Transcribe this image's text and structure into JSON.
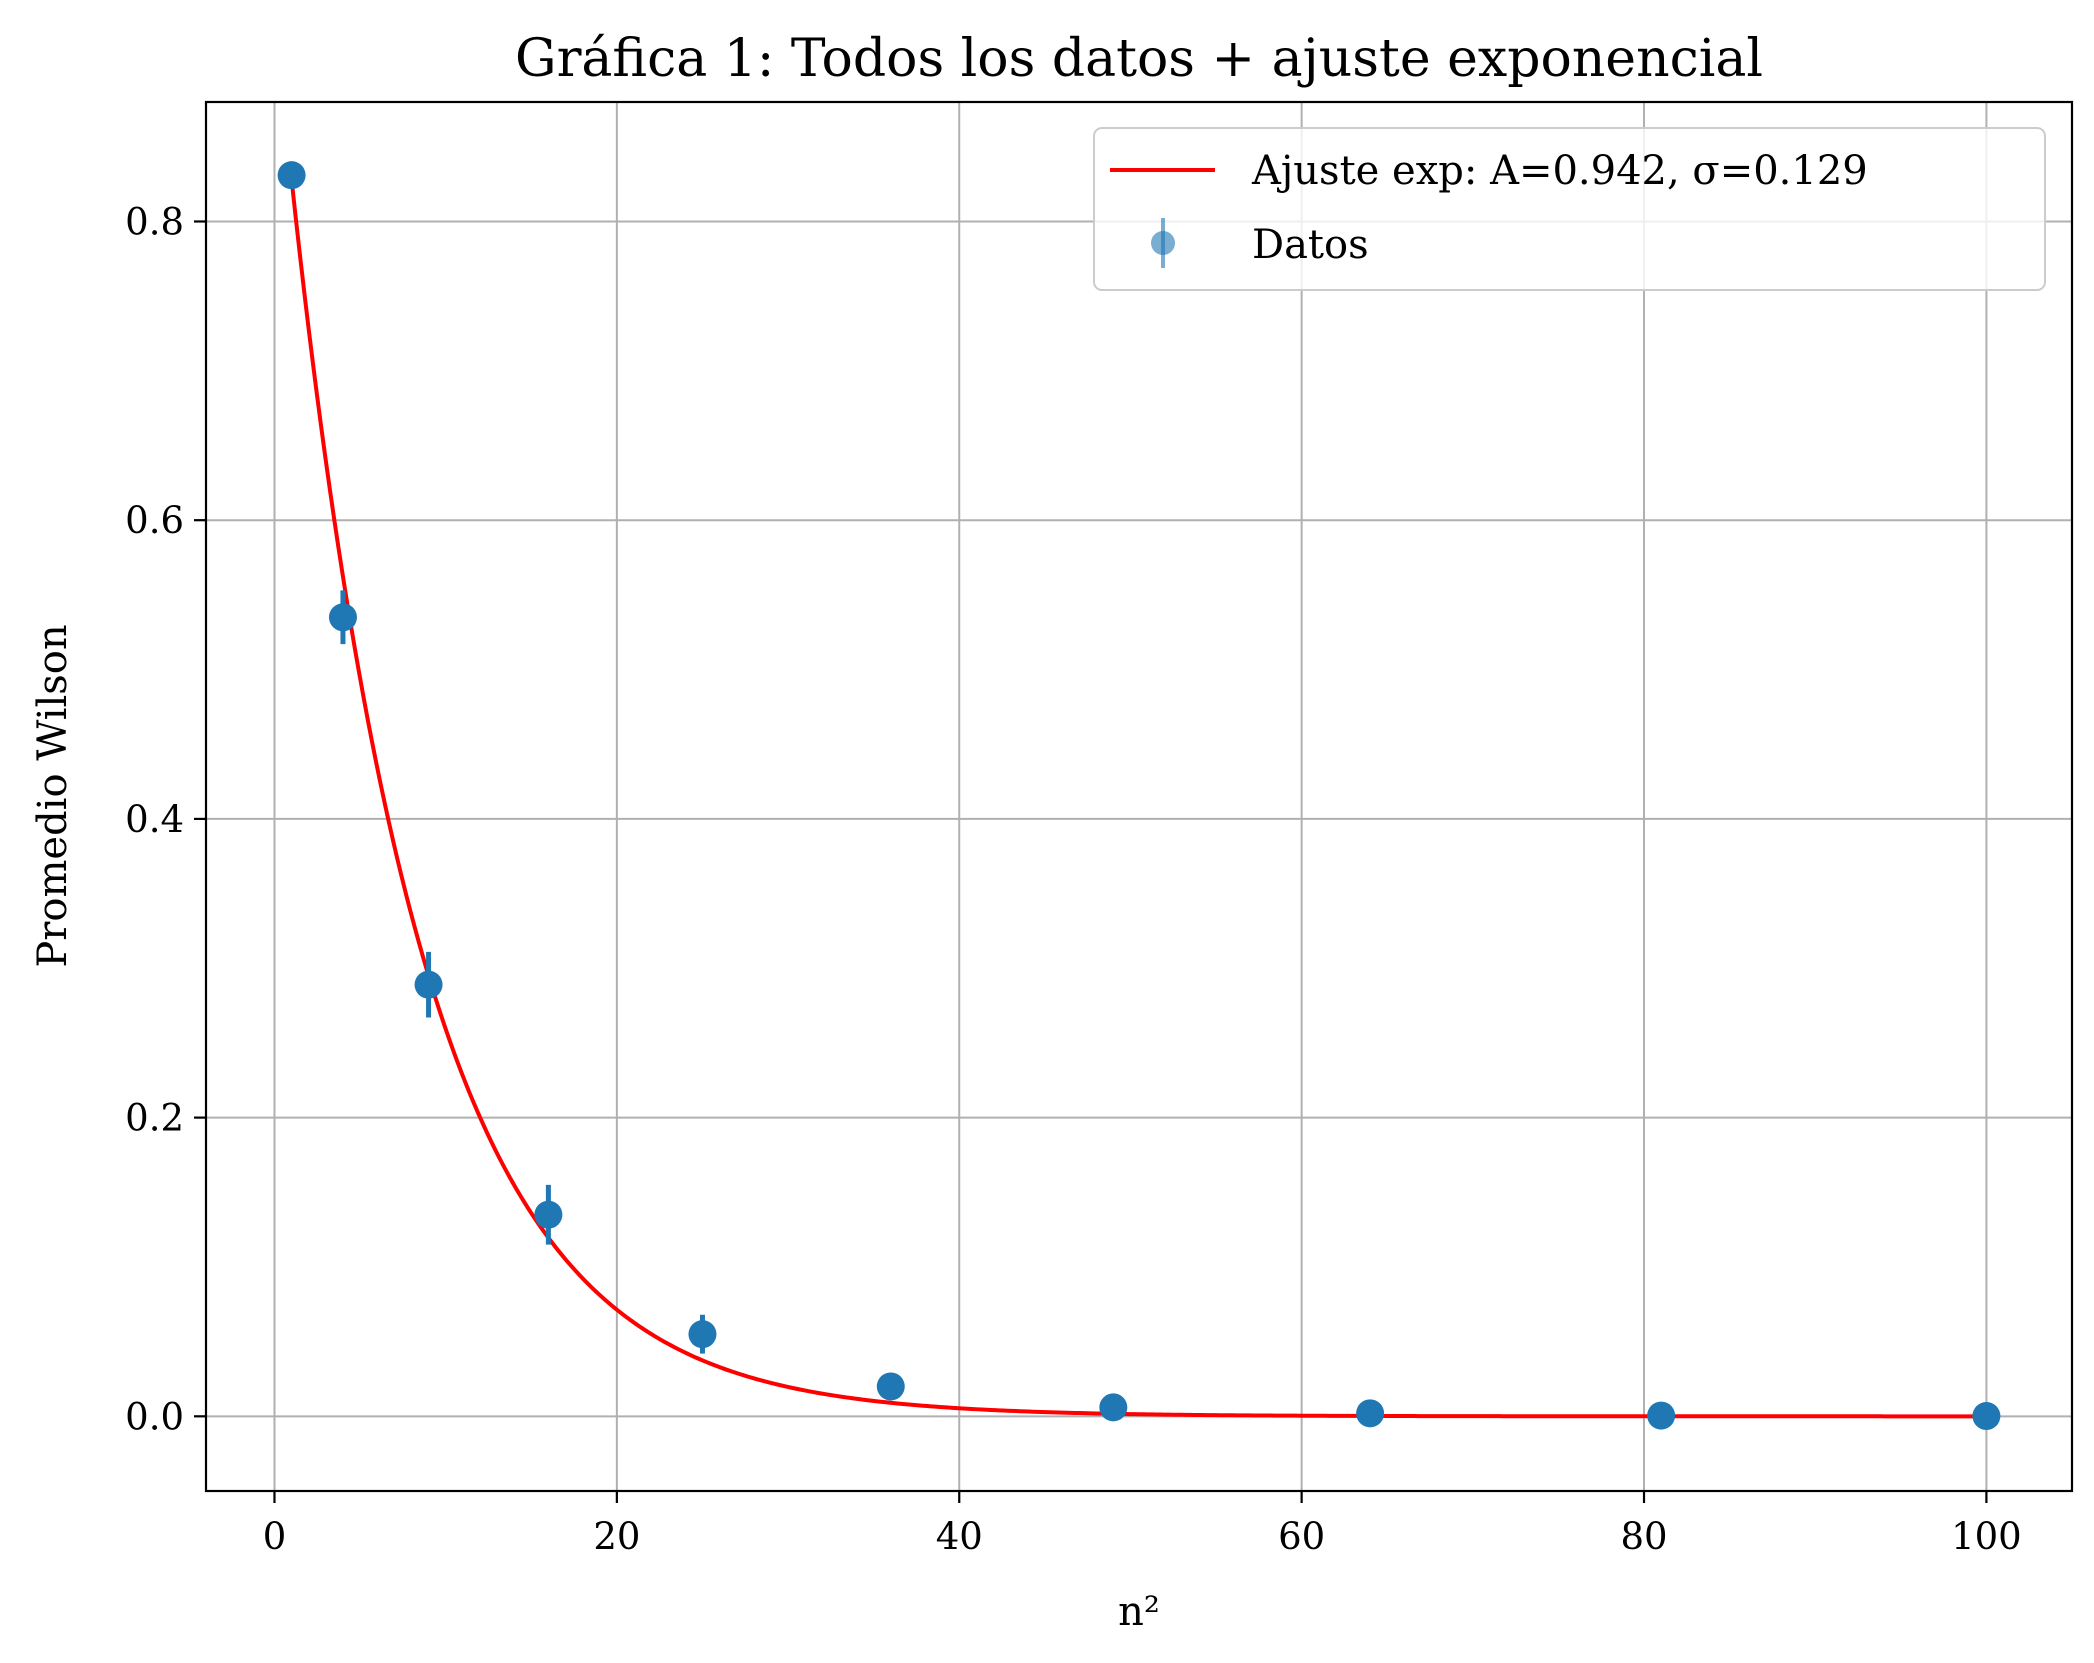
{
  "chart_data": {
    "type": "scatter",
    "title": "Gráfica 1: Todos los datos + ajuste exponencial",
    "xlabel": "n²",
    "ylabel": "Promedio Wilson",
    "xlim": [
      -4,
      105
    ],
    "ylim": [
      -0.05,
      0.88
    ],
    "xticks": [
      0,
      20,
      40,
      60,
      80,
      100
    ],
    "xtick_labels": [
      "0",
      "20",
      "40",
      "60",
      "80",
      "100"
    ],
    "yticks": [
      0.0,
      0.2,
      0.4,
      0.6,
      0.8
    ],
    "ytick_labels": [
      "0.0",
      "0.2",
      "0.4",
      "0.6",
      "0.8"
    ],
    "grid": true,
    "legend_position": "top-right",
    "series": [
      {
        "name": "Datos",
        "kind": "errorbar",
        "color": "#1f77b4",
        "x": [
          1,
          4,
          9,
          16,
          25,
          36,
          49,
          64,
          81,
          100
        ],
        "y": [
          0.831,
          0.535,
          0.289,
          0.135,
          0.055,
          0.02,
          0.006,
          0.002,
          0.0005,
          0.0002
        ],
        "yerr": [
          0.003,
          0.018,
          0.022,
          0.02,
          0.013,
          0.004,
          0.002,
          0.001,
          0.0005,
          0.0003
        ]
      },
      {
        "name": "Ajuste exp: A=0.942, σ=0.129",
        "kind": "line",
        "color": "#ff0000",
        "function": "A*exp(-sigma*x)",
        "A": 0.942,
        "sigma": 0.129,
        "x_range": [
          1,
          100
        ]
      }
    ]
  }
}
